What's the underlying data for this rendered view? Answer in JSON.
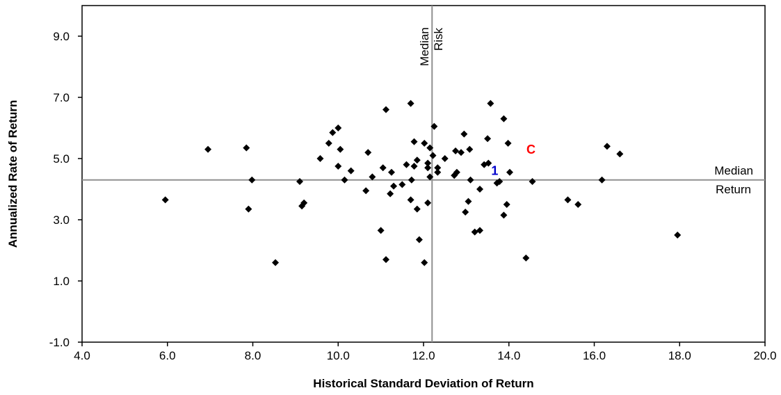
{
  "chart_data": {
    "type": "scatter",
    "xlabel": "Historical Standard Deviation of Return",
    "ylabel": "Annualized Rate of Return",
    "xlim": [
      4.0,
      20.0
    ],
    "ylim": [
      -1.0,
      10.0
    ],
    "x_ticks": [
      "4.0",
      "6.0",
      "8.0",
      "10.0",
      "12.0",
      "14.0",
      "16.0",
      "18.0",
      "20.0"
    ],
    "y_ticks": [
      "-1.0",
      "1.0",
      "3.0",
      "5.0",
      "7.0",
      "9.0"
    ],
    "y_tick_values": [
      -1,
      1,
      3,
      5,
      7,
      9
    ],
    "grid": false,
    "median_risk": {
      "value": 12.2,
      "label_line1": "Median",
      "label_line2": "Risk"
    },
    "median_return": {
      "value": 4.3,
      "label_line1": "Median",
      "label_line2": "Return"
    },
    "highlighted": [
      {
        "label": "C",
        "x": 14.5,
        "y": 5.2,
        "color": "#ff0000"
      },
      {
        "label": "1",
        "x": 13.7,
        "y": 4.6,
        "color": "#0000cc"
      }
    ],
    "points": [
      [
        5.95,
        3.65
      ],
      [
        6.95,
        5.3
      ],
      [
        7.85,
        5.35
      ],
      [
        7.9,
        3.35
      ],
      [
        7.98,
        4.3
      ],
      [
        8.53,
        1.6
      ],
      [
        9.1,
        4.25
      ],
      [
        9.15,
        3.45
      ],
      [
        9.2,
        3.55
      ],
      [
        9.58,
        5.0
      ],
      [
        9.78,
        5.5
      ],
      [
        9.87,
        5.85
      ],
      [
        10.0,
        4.75
      ],
      [
        10.0,
        6.0
      ],
      [
        10.05,
        5.3
      ],
      [
        10.15,
        4.3
      ],
      [
        10.3,
        4.6
      ],
      [
        10.65,
        3.95
      ],
      [
        10.7,
        5.2
      ],
      [
        10.8,
        4.4
      ],
      [
        11.0,
        2.65
      ],
      [
        11.05,
        4.7
      ],
      [
        11.12,
        6.6
      ],
      [
        11.12,
        1.7
      ],
      [
        11.22,
        3.85
      ],
      [
        11.25,
        4.55
      ],
      [
        11.3,
        4.1
      ],
      [
        11.5,
        4.15
      ],
      [
        11.6,
        4.8
      ],
      [
        11.7,
        6.8
      ],
      [
        11.7,
        3.65
      ],
      [
        11.72,
        4.3
      ],
      [
        11.78,
        5.55
      ],
      [
        11.78,
        4.75
      ],
      [
        11.85,
        4.95
      ],
      [
        11.85,
        3.35
      ],
      [
        11.9,
        2.35
      ],
      [
        12.02,
        5.5
      ],
      [
        12.02,
        1.6
      ],
      [
        12.1,
        4.7
      ],
      [
        12.1,
        4.85
      ],
      [
        12.1,
        3.55
      ],
      [
        12.15,
        4.4
      ],
      [
        12.15,
        5.35
      ],
      [
        12.22,
        5.1
      ],
      [
        12.25,
        6.05
      ],
      [
        12.33,
        4.55
      ],
      [
        12.33,
        4.7
      ],
      [
        12.5,
        5.0
      ],
      [
        12.72,
        4.45
      ],
      [
        12.75,
        5.25
      ],
      [
        12.78,
        4.55
      ],
      [
        12.88,
        5.2
      ],
      [
        12.95,
        5.8
      ],
      [
        12.98,
        3.25
      ],
      [
        13.05,
        3.6
      ],
      [
        13.08,
        5.3
      ],
      [
        13.1,
        4.3
      ],
      [
        13.2,
        2.6
      ],
      [
        13.32,
        4.0
      ],
      [
        13.32,
        2.65
      ],
      [
        13.42,
        4.8
      ],
      [
        13.5,
        5.65
      ],
      [
        13.52,
        4.85
      ],
      [
        13.57,
        6.8
      ],
      [
        13.72,
        4.2
      ],
      [
        13.78,
        4.25
      ],
      [
        13.88,
        6.3
      ],
      [
        13.88,
        3.15
      ],
      [
        13.95,
        3.5
      ],
      [
        13.98,
        5.5
      ],
      [
        14.02,
        4.55
      ],
      [
        14.4,
        1.75
      ],
      [
        14.55,
        4.25
      ],
      [
        15.38,
        3.65
      ],
      [
        15.62,
        3.5
      ],
      [
        16.18,
        4.3
      ],
      [
        16.3,
        5.4
      ],
      [
        16.6,
        5.15
      ],
      [
        17.95,
        2.5
      ]
    ]
  }
}
